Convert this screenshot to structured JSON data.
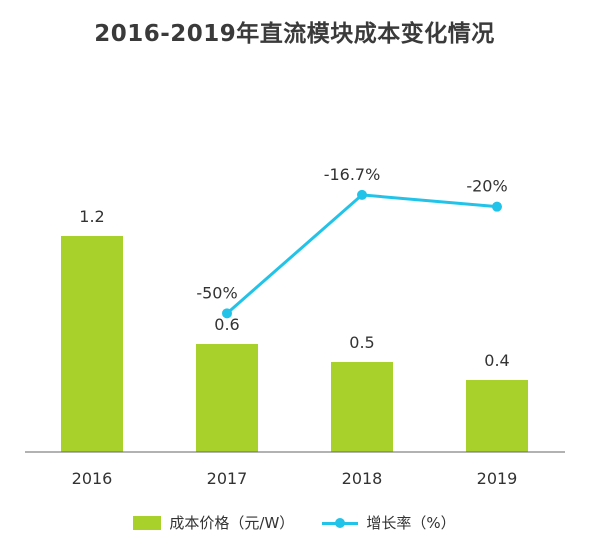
{
  "colors": {
    "bar": "#a9d12b",
    "line": "#22c3e8",
    "axis": "#666666",
    "title": "#3a3a3a"
  },
  "chart_data": {
    "type": "bar",
    "title": "2016-2019年直流模块成本变化情况",
    "categories": [
      "2016",
      "2017",
      "2018",
      "2019"
    ],
    "series": [
      {
        "name": "成本价格（元/W）",
        "type": "bar",
        "values": [
          1.2,
          0.6,
          0.5,
          0.4
        ],
        "labels": [
          "1.2",
          "0.6",
          "0.5",
          "0.4"
        ]
      },
      {
        "name": "增长率（%）",
        "type": "line",
        "values": [
          null,
          -50,
          -16.7,
          -20
        ],
        "labels": [
          "",
          "-50%",
          "-16.7%",
          "-20%"
        ]
      }
    ],
    "ylim": [
      0,
      1.2
    ],
    "y2lim": [
      -80,
      10
    ],
    "legend": "bottom"
  }
}
